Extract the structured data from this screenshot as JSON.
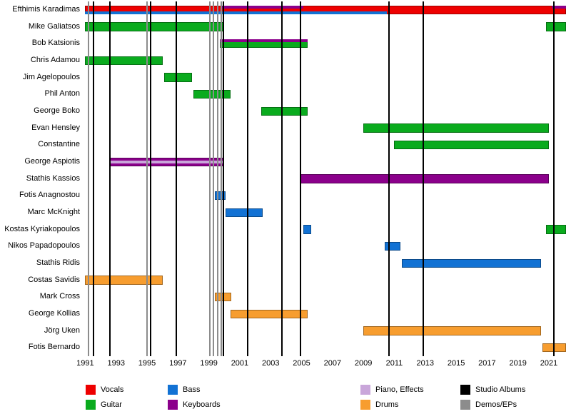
{
  "chart_data": {
    "type": "timeline",
    "title": "",
    "x_axis": {
      "start": 1990.75,
      "end": 2022.2,
      "tick_years": [
        1991,
        1993,
        1995,
        1997,
        1999,
        2001,
        2003,
        2005,
        2007,
        2009,
        2011,
        2013,
        2015,
        2017,
        2019,
        2021
      ]
    },
    "colors": {
      "vocals": "#ee0000",
      "guitar": "#0aab1e",
      "bass": "#1272d4",
      "keyboards": "#8b008b",
      "piano_effects": "#c9a6da",
      "drums": "#f79d2f",
      "studio_albums": "#000000",
      "demos_eps": "#8c8c8c"
    },
    "members": [
      {
        "name": "Efthimis Karadimas",
        "segments": [
          {
            "role": "vocals",
            "start": 1991.0,
            "end": 2022.1,
            "lane": "full"
          },
          {
            "role": "keyboards",
            "start": 1999.8,
            "end": 2005.1,
            "lane": "top"
          },
          {
            "role": "keyboards",
            "start": 2021.2,
            "end": 2022.1,
            "lane": "top"
          },
          {
            "role": "bass",
            "start": 1991.0,
            "end": 2010.5,
            "lane": "bottom"
          }
        ]
      },
      {
        "name": "Mike Galiatsos",
        "segments": [
          {
            "role": "guitar",
            "start": 1991.0,
            "end": 2000.0,
            "lane": "full"
          },
          {
            "role": "guitar",
            "start": 2020.8,
            "end": 2022.1,
            "lane": "full"
          }
        ]
      },
      {
        "name": "Bob Katsionis",
        "segments": [
          {
            "role": "guitar",
            "start": 1999.7,
            "end": 2005.4,
            "lane": "full"
          },
          {
            "role": "keyboards",
            "start": 1999.7,
            "end": 2005.4,
            "lane": "top"
          }
        ]
      },
      {
        "name": "Chris Adamou",
        "segments": [
          {
            "role": "guitar",
            "start": 1991.0,
            "end": 1996.0,
            "lane": "full"
          }
        ]
      },
      {
        "name": "Jim Agelopoulos",
        "segments": [
          {
            "role": "guitar",
            "start": 1996.1,
            "end": 1997.9,
            "lane": "full"
          }
        ]
      },
      {
        "name": "Phil Anton",
        "segments": [
          {
            "role": "guitar",
            "start": 1998.0,
            "end": 2000.4,
            "lane": "full"
          }
        ]
      },
      {
        "name": "George Boko",
        "segments": [
          {
            "role": "guitar",
            "start": 2002.4,
            "end": 2005.4,
            "lane": "full"
          }
        ]
      },
      {
        "name": "Evan Hensley",
        "segments": [
          {
            "role": "guitar",
            "start": 2009.0,
            "end": 2021.0,
            "lane": "full"
          }
        ]
      },
      {
        "name": "Constantine",
        "segments": [
          {
            "role": "guitar",
            "start": 2011.0,
            "end": 2021.0,
            "lane": "full"
          }
        ]
      },
      {
        "name": "George Aspiotis",
        "segments": [
          {
            "role": "keyboards",
            "start": 1992.6,
            "end": 2000.0,
            "lane": "full"
          },
          {
            "role": "piano_effects",
            "start": 1992.6,
            "end": 2000.0,
            "lane": "mid"
          }
        ]
      },
      {
        "name": "Stathis Kassios",
        "segments": [
          {
            "role": "keyboards",
            "start": 2004.9,
            "end": 2021.0,
            "lane": "full"
          }
        ]
      },
      {
        "name": "Fotis Anagnostou",
        "segments": [
          {
            "role": "bass",
            "start": 1999.4,
            "end": 2000.1,
            "lane": "full"
          }
        ]
      },
      {
        "name": "Marc McKnight",
        "segments": [
          {
            "role": "bass",
            "start": 2000.1,
            "end": 2002.5,
            "lane": "full"
          }
        ]
      },
      {
        "name": "Kostas Kyriakopoulos",
        "segments": [
          {
            "role": "bass",
            "start": 2005.1,
            "end": 2005.6,
            "lane": "full"
          },
          {
            "role": "guitar",
            "start": 2020.8,
            "end": 2022.1,
            "lane": "full"
          }
        ]
      },
      {
        "name": "Nikos Papadopoulos",
        "segments": [
          {
            "role": "bass",
            "start": 2010.4,
            "end": 2011.4,
            "lane": "full"
          }
        ]
      },
      {
        "name": "Stathis Ridis",
        "segments": [
          {
            "role": "bass",
            "start": 2011.5,
            "end": 2020.5,
            "lane": "full"
          }
        ]
      },
      {
        "name": "Costas Savidis",
        "segments": [
          {
            "role": "drums",
            "start": 1991.0,
            "end": 1996.0,
            "lane": "full"
          }
        ]
      },
      {
        "name": "Mark Cross",
        "segments": [
          {
            "role": "drums",
            "start": 1999.4,
            "end": 2000.45,
            "lane": "full"
          }
        ]
      },
      {
        "name": "George Kollias",
        "segments": [
          {
            "role": "drums",
            "start": 2000.4,
            "end": 2005.4,
            "lane": "full"
          }
        ]
      },
      {
        "name": "Jörg Uken",
        "segments": [
          {
            "role": "drums",
            "start": 2009.0,
            "end": 2020.5,
            "lane": "full"
          }
        ]
      },
      {
        "name": "Fotis Bernardo",
        "segments": [
          {
            "role": "drums",
            "start": 2020.6,
            "end": 2022.1,
            "lane": "full"
          }
        ]
      }
    ],
    "releases": {
      "studio_albums": [
        1991.55,
        1992.6,
        1995.25,
        1996.9,
        1999.95,
        2001.5,
        2003.75,
        2004.95,
        2010.65,
        2012.85,
        2021.3
      ],
      "demos_eps": [
        1991.2,
        1995.0,
        1999.05,
        1999.3,
        1999.55,
        1999.8
      ]
    },
    "legend_cols": [
      120,
      235,
      505,
      645
    ],
    "legend": [
      {
        "label": "Vocals",
        "role": "vocals",
        "col": 0,
        "row": 0
      },
      {
        "label": "Guitar",
        "role": "guitar",
        "col": 0,
        "row": 1
      },
      {
        "label": "Bass",
        "role": "bass",
        "col": 1,
        "row": 0
      },
      {
        "label": "Keyboards",
        "role": "keyboards",
        "col": 1,
        "row": 1
      },
      {
        "label": "Piano, Effects",
        "role": "piano_effects",
        "col": 2,
        "row": 0
      },
      {
        "label": "Drums",
        "role": "drums",
        "col": 2,
        "row": 1
      },
      {
        "label": "Studio Albums",
        "role": "studio_albums",
        "col": 3,
        "row": 0
      },
      {
        "label": "Demos/EPs",
        "role": "demos_eps",
        "col": 3,
        "row": 1
      }
    ]
  }
}
